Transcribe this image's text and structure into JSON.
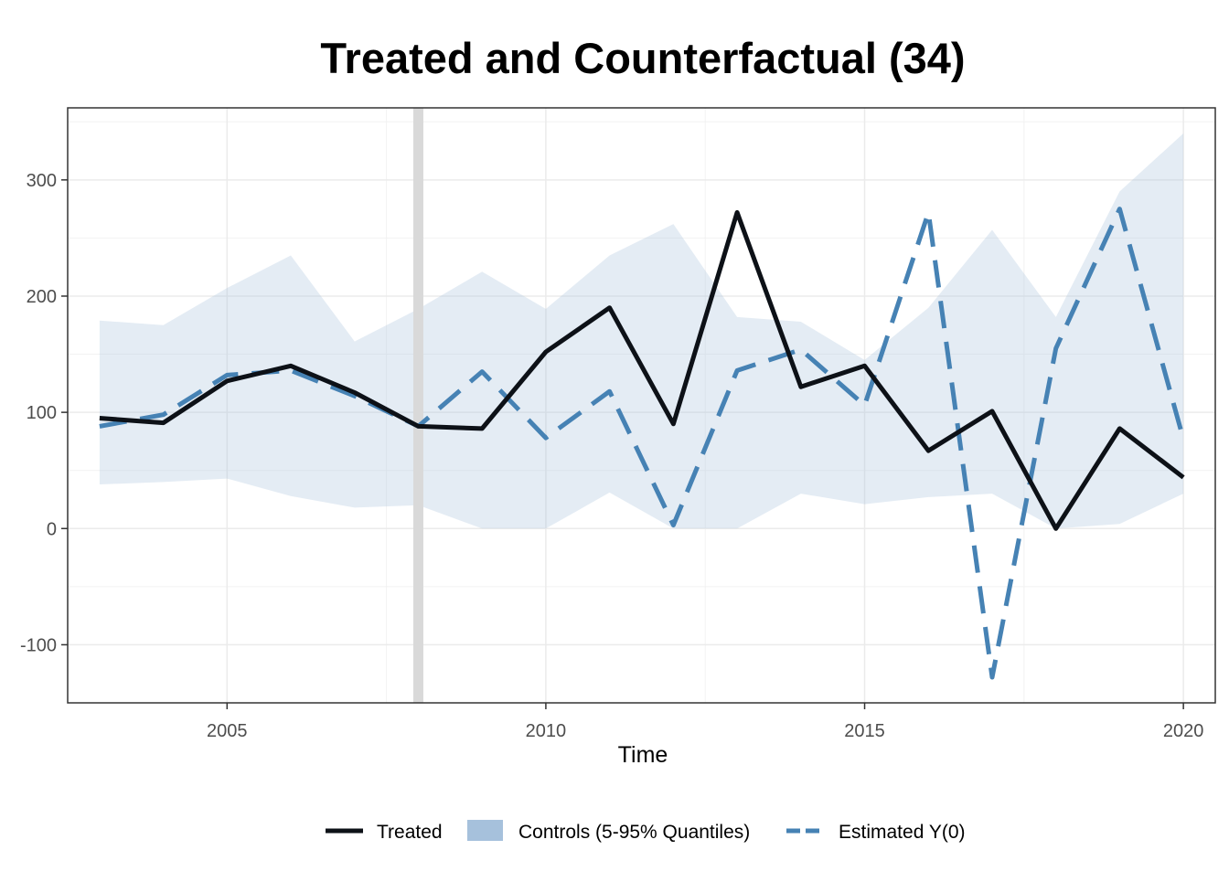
{
  "chart_data": {
    "type": "line",
    "title": "Treated and Counterfactual (34)",
    "xlabel": "Time",
    "ylabel": "",
    "xlim": [
      2002.5,
      2020.5
    ],
    "ylim": [
      -150,
      362
    ],
    "x_ticks": [
      2005,
      2010,
      2015,
      2020
    ],
    "x_tick_labels": [
      "2005",
      "2010",
      "2015",
      "2020"
    ],
    "y_ticks": [
      -100,
      0,
      100,
      200,
      300
    ],
    "y_tick_labels": [
      "-100",
      "0",
      "100",
      "200",
      "300"
    ],
    "grid": true,
    "legend_position": "bottom",
    "treatment_start": 2008,
    "treatment_line_color": "#d9d9d9",
    "x": [
      2003,
      2004,
      2005,
      2006,
      2007,
      2008,
      2009,
      2010,
      2011,
      2012,
      2013,
      2014,
      2015,
      2016,
      2017,
      2018,
      2019,
      2020
    ],
    "series": [
      {
        "name": "Treated",
        "kind": "line",
        "color": "#0d1117",
        "dash": "solid",
        "values": [
          95,
          91,
          127,
          140,
          117,
          88,
          86,
          152,
          190,
          90,
          272,
          122,
          140,
          67,
          101,
          0,
          86,
          44
        ]
      },
      {
        "name": "Controls (5-95% Quantiles)",
        "kind": "band",
        "color": "#a6c1dc",
        "fill_opacity": 0.3,
        "lower": [
          38,
          40,
          43,
          28,
          18,
          20,
          0,
          0,
          31,
          0,
          0,
          30,
          21,
          27,
          30,
          0,
          4,
          30
        ],
        "upper": [
          179,
          175,
          207,
          235,
          161,
          189,
          221,
          189,
          235,
          262,
          182,
          178,
          145,
          190,
          257,
          182,
          290,
          340
        ]
      },
      {
        "name": "Estimated Y(0)",
        "kind": "line",
        "color": "#4682b4",
        "dash": "dashed",
        "values": [
          88,
          98,
          132,
          136,
          114,
          88,
          135,
          78,
          118,
          3,
          136,
          154,
          106,
          272,
          -128,
          155,
          275,
          77
        ]
      }
    ]
  }
}
